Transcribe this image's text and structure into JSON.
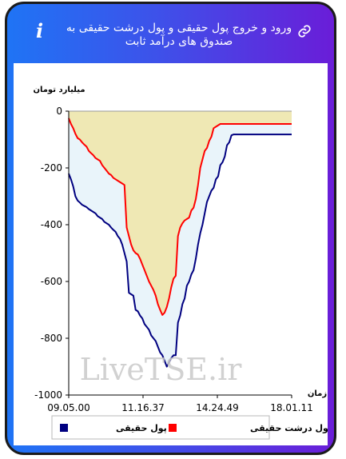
{
  "header": {
    "title": "ورود و خروج پول حقیقی و پول درشت حقیقی به صندوق های درآمد ثابت",
    "info_icon": "info-icon",
    "link_icon": "link-icon"
  },
  "watermark": "LiveTSE.ir",
  "colors": {
    "series_1": "#000080",
    "series_2": "#ff0000",
    "fill_1": "#e9f4fa",
    "fill_2": "#efe8b4"
  },
  "chart_data": {
    "type": "area",
    "ylabel": "میلیارد تومان",
    "xlabel": "زمان",
    "ylim": [
      -1000,
      0
    ],
    "yticks": [
      0,
      -200,
      -400,
      -600,
      -800,
      -1000
    ],
    "xticks": [
      "09.05.00",
      "11.16.37",
      "14.24.49",
      "18.01.11"
    ],
    "grid": false,
    "legend_position": "bottom",
    "x_units": "sample index (0-100) along the time axis",
    "series": [
      {
        "name": "پول حقیقی",
        "color": "#000080",
        "points": [
          [
            0,
            -220
          ],
          [
            1,
            -240
          ],
          [
            2,
            -265
          ],
          [
            3,
            -300
          ],
          [
            4,
            -315
          ],
          [
            5,
            -322
          ],
          [
            6,
            -330
          ],
          [
            7,
            -334
          ],
          [
            8,
            -338
          ],
          [
            9,
            -345
          ],
          [
            10,
            -350
          ],
          [
            11,
            -355
          ],
          [
            12,
            -360
          ],
          [
            13,
            -370
          ],
          [
            14,
            -375
          ],
          [
            15,
            -380
          ],
          [
            16,
            -390
          ],
          [
            17,
            -395
          ],
          [
            18,
            -400
          ],
          [
            19,
            -410
          ],
          [
            20,
            -418
          ],
          [
            21,
            -425
          ],
          [
            22,
            -440
          ],
          [
            23,
            -450
          ],
          [
            24,
            -470
          ],
          [
            25,
            -500
          ],
          [
            26,
            -530
          ],
          [
            27,
            -640
          ],
          [
            28,
            -645
          ],
          [
            29,
            -650
          ],
          [
            30,
            -700
          ],
          [
            31,
            -705
          ],
          [
            32,
            -720
          ],
          [
            33,
            -730
          ],
          [
            34,
            -750
          ],
          [
            35,
            -760
          ],
          [
            36,
            -770
          ],
          [
            37,
            -790
          ],
          [
            38,
            -800
          ],
          [
            39,
            -810
          ],
          [
            40,
            -830
          ],
          [
            41,
            -850
          ],
          [
            42,
            -860
          ],
          [
            43,
            -880
          ],
          [
            44,
            -900
          ],
          [
            45,
            -885
          ],
          [
            46,
            -870
          ],
          [
            47,
            -860
          ],
          [
            48,
            -860
          ],
          [
            49,
            -745
          ],
          [
            50,
            -720
          ],
          [
            51,
            -680
          ],
          [
            52,
            -660
          ],
          [
            53,
            -615
          ],
          [
            54,
            -600
          ],
          [
            55,
            -575
          ],
          [
            56,
            -560
          ],
          [
            57,
            -520
          ],
          [
            58,
            -470
          ],
          [
            59,
            -430
          ],
          [
            60,
            -400
          ],
          [
            61,
            -360
          ],
          [
            62,
            -320
          ],
          [
            63,
            -300
          ],
          [
            64,
            -280
          ],
          [
            65,
            -270
          ],
          [
            66,
            -240
          ],
          [
            67,
            -230
          ],
          [
            68,
            -190
          ],
          [
            69,
            -180
          ],
          [
            70,
            -160
          ],
          [
            71,
            -120
          ],
          [
            72,
            -110
          ],
          [
            73,
            -85
          ],
          [
            74,
            -82
          ],
          [
            75,
            -82
          ],
          [
            100,
            -82
          ]
        ]
      },
      {
        "name": "پول درشت حقیقی",
        "color": "#ff0000",
        "points": [
          [
            0,
            -25
          ],
          [
            1,
            -45
          ],
          [
            2,
            -60
          ],
          [
            3,
            -80
          ],
          [
            4,
            -95
          ],
          [
            5,
            -100
          ],
          [
            6,
            -110
          ],
          [
            7,
            -118
          ],
          [
            8,
            -125
          ],
          [
            9,
            -140
          ],
          [
            10,
            -148
          ],
          [
            11,
            -155
          ],
          [
            12,
            -165
          ],
          [
            13,
            -170
          ],
          [
            14,
            -175
          ],
          [
            15,
            -190
          ],
          [
            16,
            -200
          ],
          [
            17,
            -210
          ],
          [
            18,
            -220
          ],
          [
            19,
            -225
          ],
          [
            20,
            -235
          ],
          [
            21,
            -240
          ],
          [
            22,
            -245
          ],
          [
            23,
            -250
          ],
          [
            24,
            -255
          ],
          [
            25,
            -260
          ],
          [
            26,
            -410
          ],
          [
            27,
            -440
          ],
          [
            28,
            -470
          ],
          [
            29,
            -490
          ],
          [
            30,
            -500
          ],
          [
            31,
            -505
          ],
          [
            32,
            -520
          ],
          [
            33,
            -540
          ],
          [
            34,
            -560
          ],
          [
            35,
            -580
          ],
          [
            36,
            -600
          ],
          [
            37,
            -615
          ],
          [
            38,
            -630
          ],
          [
            39,
            -650
          ],
          [
            40,
            -680
          ],
          [
            41,
            -700
          ],
          [
            42,
            -718
          ],
          [
            43,
            -710
          ],
          [
            44,
            -690
          ],
          [
            45,
            -660
          ],
          [
            46,
            -620
          ],
          [
            47,
            -590
          ],
          [
            48,
            -580
          ],
          [
            49,
            -440
          ],
          [
            50,
            -410
          ],
          [
            51,
            -395
          ],
          [
            52,
            -385
          ],
          [
            53,
            -380
          ],
          [
            54,
            -375
          ],
          [
            55,
            -350
          ],
          [
            56,
            -340
          ],
          [
            57,
            -310
          ],
          [
            58,
            -260
          ],
          [
            59,
            -200
          ],
          [
            60,
            -170
          ],
          [
            61,
            -140
          ],
          [
            62,
            -130
          ],
          [
            63,
            -105
          ],
          [
            64,
            -90
          ],
          [
            65,
            -60
          ],
          [
            66,
            -55
          ],
          [
            67,
            -50
          ],
          [
            68,
            -45
          ],
          [
            69,
            -45
          ],
          [
            100,
            -45
          ]
        ]
      }
    ]
  }
}
